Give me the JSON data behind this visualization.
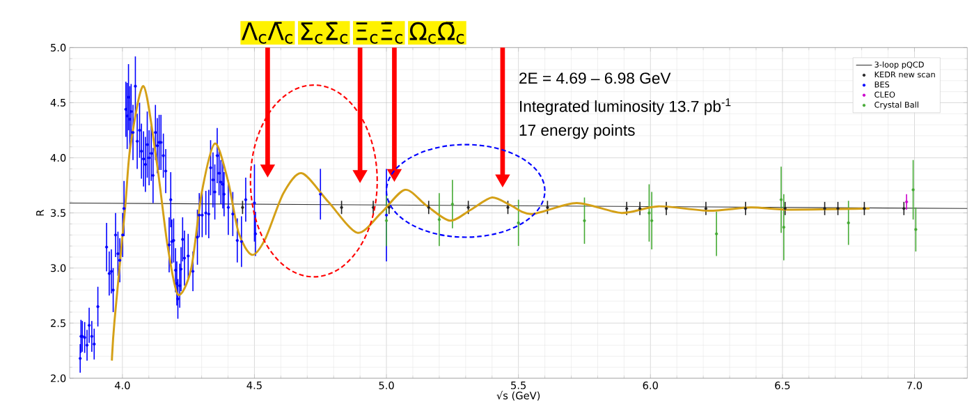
{
  "chart_data": {
    "type": "scatter",
    "xlabel": "√s (GeV)",
    "ylabel": "R",
    "xlim": [
      3.8,
      7.2
    ],
    "ylim": [
      2.0,
      5.0
    ],
    "xticks": [
      {
        "value": 4,
        "label": "4.0"
      },
      {
        "value": 4.5,
        "label": "4.5"
      },
      {
        "value": 5,
        "label": "5.0"
      },
      {
        "value": 5.5,
        "label": "5.5"
      },
      {
        "value": 6,
        "label": "6.0"
      },
      {
        "value": 6.5,
        "label": "6.5"
      },
      {
        "value": 7,
        "label": "7.0"
      }
    ],
    "yticks": [
      {
        "value": 2,
        "label": "2.0"
      },
      {
        "value": 2.5,
        "label": "2.5"
      },
      {
        "value": 3,
        "label": "3.0"
      },
      {
        "value": 3.5,
        "label": "3.5"
      },
      {
        "value": 4,
        "label": "4.0"
      },
      {
        "value": 4.5,
        "label": "4.5"
      },
      {
        "value": 5,
        "label": "5.0"
      }
    ],
    "grid": true,
    "legend": "top right",
    "series": [
      {
        "name": "3-loop pQCD",
        "type": "line",
        "marker": "none",
        "color": "#333333",
        "x": [
          3.8,
          7.2
        ],
        "values": [
          3.59,
          3.54
        ]
      },
      {
        "name": "KEDR new scan",
        "marker": "circle",
        "color": "#222222",
        "x": [
          4.455,
          4.83,
          4.95,
          5.01,
          5.16,
          5.31,
          5.46,
          5.61,
          5.91,
          5.96,
          6.06,
          6.21,
          6.36,
          6.51,
          6.66,
          6.71,
          6.81,
          6.96
        ],
        "values": [
          3.55,
          3.55,
          3.55,
          3.55,
          3.55,
          3.55,
          3.55,
          3.55,
          3.54,
          3.54,
          3.54,
          3.54,
          3.54,
          3.54,
          3.54,
          3.54,
          3.54,
          3.54
        ],
        "errors": [
          0.06,
          0.06,
          0.06,
          0.06,
          0.06,
          0.06,
          0.06,
          0.06,
          0.06,
          0.06,
          0.06,
          0.06,
          0.06,
          0.06,
          0.06,
          0.06,
          0.06,
          0.06
        ]
      },
      {
        "name": "BES",
        "marker": "circle",
        "color": "#0000ff",
        "x": [
          3.84,
          3.843,
          3.848,
          3.857,
          3.866,
          3.874,
          3.884,
          3.893,
          3.907,
          3.94,
          3.95,
          3.958,
          3.965,
          3.974,
          3.983,
          3.99,
          4.001,
          4.006,
          4.013,
          4.018,
          4.023,
          4.028,
          4.033,
          4.04,
          4.049,
          4.056,
          4.065,
          4.072,
          4.08,
          4.087,
          4.094,
          4.101,
          4.109,
          4.116,
          4.125,
          4.132,
          4.139,
          4.146,
          4.155,
          4.164,
          4.183,
          4.177,
          4.187,
          4.194,
          4.201,
          4.206,
          4.21,
          4.217,
          4.222,
          4.228,
          4.235,
          4.249,
          4.267,
          4.284,
          4.291,
          4.302,
          4.316,
          4.327,
          4.334,
          4.343,
          4.35,
          4.359,
          4.366,
          4.373,
          4.38,
          4.385,
          4.401,
          4.418,
          4.435,
          4.451,
          4.467,
          4.5,
          4.504,
          4.75,
          5.0
        ],
        "values": [
          2.18,
          2.38,
          2.38,
          2.37,
          2.3,
          2.48,
          2.38,
          2.31,
          2.65,
          3.19,
          2.95,
          2.97,
          2.8,
          3.3,
          3.13,
          3.07,
          3.3,
          3.54,
          4.44,
          4.38,
          4.55,
          4.35,
          4.42,
          4.23,
          4.65,
          4.15,
          4.25,
          4.06,
          3.99,
          3.94,
          4.12,
          4.0,
          4.04,
          3.84,
          4.23,
          4.11,
          4.14,
          4.14,
          4.02,
          3.88,
          3.62,
          3.21,
          3.24,
          3.25,
          2.98,
          2.86,
          2.72,
          2.84,
          2.99,
          3.26,
          3.09,
          3.11,
          2.97,
          3.28,
          3.48,
          3.48,
          3.5,
          3.49,
          3.91,
          3.8,
          3.69,
          4.02,
          3.86,
          3.78,
          3.76,
          3.67,
          3.55,
          3.49,
          3.25,
          3.24,
          3.62,
          3.59,
          3.31,
          3.67,
          3.48
        ],
        "errors": [
          0.13,
          0.15,
          0.14,
          0.14,
          0.14,
          0.16,
          0.14,
          0.14,
          0.18,
          0.22,
          0.2,
          0.2,
          0.2,
          0.2,
          0.2,
          0.2,
          0.2,
          0.25,
          0.25,
          0.3,
          0.3,
          0.3,
          0.25,
          0.25,
          0.27,
          0.25,
          0.25,
          0.25,
          0.25,
          0.25,
          0.3,
          0.25,
          0.25,
          0.25,
          0.25,
          0.25,
          0.25,
          0.25,
          0.2,
          0.2,
          0.25,
          0.25,
          0.2,
          0.2,
          0.2,
          0.2,
          0.18,
          0.2,
          0.2,
          0.2,
          0.25,
          0.2,
          0.18,
          0.25,
          0.2,
          0.2,
          0.2,
          0.22,
          0.25,
          0.25,
          0.25,
          0.25,
          0.2,
          0.2,
          0.22,
          0.2,
          0.25,
          0.2,
          0.2,
          0.23,
          0.2,
          0.35,
          0.2,
          0.23,
          0.42
        ]
      },
      {
        "name": "CLEO",
        "marker": "circle",
        "color": "#cc00cc",
        "x": [
          6.97
        ],
        "values": [
          3.6
        ],
        "errors": [
          0.07
        ]
      },
      {
        "name": "Crystal Ball",
        "marker": "circle",
        "color": "#44aa33",
        "x": [
          5.0,
          5.2,
          5.25,
          5.5,
          5.75,
          5.995,
          6.005,
          6.25,
          6.495,
          6.505,
          6.75,
          6.995,
          7.005
        ],
        "values": [
          3.43,
          3.44,
          3.58,
          3.41,
          3.43,
          3.5,
          3.43,
          3.31,
          3.62,
          3.37,
          3.41,
          3.71,
          3.35
        ],
        "errors": [
          0.23,
          0.24,
          0.22,
          0.21,
          0.21,
          0.26,
          0.26,
          0.2,
          0.3,
          0.3,
          0.2,
          0.27,
          0.2
        ]
      },
      {
        "type": "line",
        "marker": "none",
        "color": "#d4a017",
        "x": [
          3.96,
          3.97,
          4.01,
          4.03,
          4.08,
          4.13,
          4.17,
          4.21,
          4.26,
          4.3,
          4.35,
          4.4,
          4.44,
          4.49,
          4.54,
          4.61,
          4.68,
          4.78,
          4.89,
          4.98,
          5.07,
          5.15,
          5.24,
          5.32,
          5.4,
          5.47,
          5.55,
          5.72,
          5.89,
          6.03,
          6.22,
          6.38,
          6.52,
          6.83
        ],
        "values": [
          2.16,
          2.52,
          3.54,
          4.1,
          4.65,
          3.96,
          3.22,
          2.76,
          2.99,
          3.68,
          4.13,
          3.79,
          3.32,
          3.12,
          3.26,
          3.68,
          3.86,
          3.6,
          3.32,
          3.5,
          3.71,
          3.57,
          3.43,
          3.53,
          3.64,
          3.57,
          3.49,
          3.59,
          3.5,
          3.56,
          3.52,
          3.55,
          3.53,
          3.54
        ]
      }
    ],
    "annotations": [
      "2E = 4.69 – 6.98 GeV",
      "Integrated luminosity 13.7 pb$^{-1}$",
      "17 energy points",
      "Λ$_{c}$Λ̄$_{c}$",
      "Σ$_{c}$Σ̄$_{c}$",
      "Ξ$_{c}$Ξ̄$_{c}$",
      "Ω$_{c}$Ω̄$_{c}$"
    ]
  }
}
